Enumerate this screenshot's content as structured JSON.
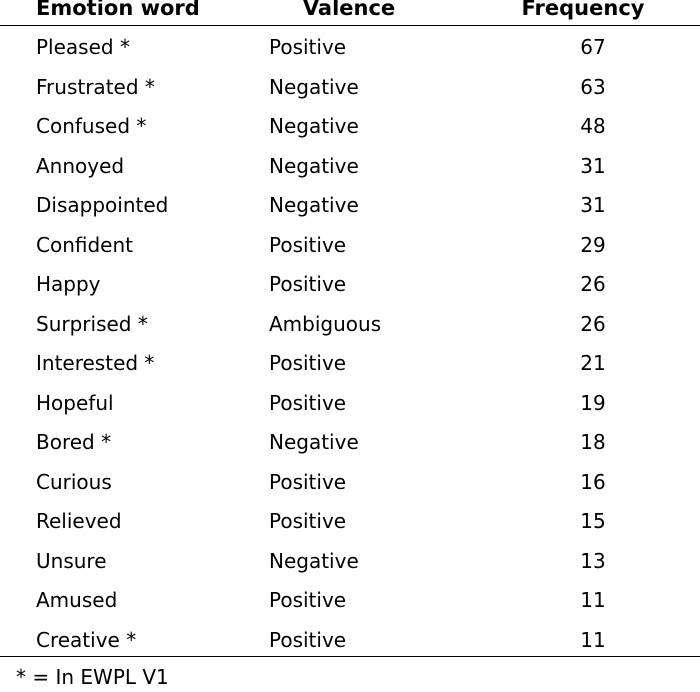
{
  "table": {
    "headers": {
      "word": "Emotion word",
      "valence": "Valence",
      "frequency": "Frequency"
    },
    "rows": [
      {
        "word": "Pleased *",
        "valence": "Positive",
        "frequency": "67"
      },
      {
        "word": "Frustrated *",
        "valence": "Negative",
        "frequency": "63"
      },
      {
        "word": "Confused *",
        "valence": "Negative",
        "frequency": "48"
      },
      {
        "word": "Annoyed",
        "valence": "Negative",
        "frequency": "31"
      },
      {
        "word": "Disappointed",
        "valence": "Negative",
        "frequency": "31"
      },
      {
        "word": "Confident",
        "valence": "Positive",
        "frequency": "29"
      },
      {
        "word": "Happy",
        "valence": "Positive",
        "frequency": "26"
      },
      {
        "word": "Surprised *",
        "valence": "Ambiguous",
        "frequency": "26"
      },
      {
        "word": "Interested *",
        "valence": "Positive",
        "frequency": "21"
      },
      {
        "word": "Hopeful",
        "valence": "Positive",
        "frequency": "19"
      },
      {
        "word": "Bored *",
        "valence": "Negative",
        "frequency": "18"
      },
      {
        "word": "Curious",
        "valence": "Positive",
        "frequency": "16"
      },
      {
        "word": "Relieved",
        "valence": "Positive",
        "frequency": "15"
      },
      {
        "word": "Unsure",
        "valence": "Negative",
        "frequency": "13"
      },
      {
        "word": "Amused",
        "valence": "Positive",
        "frequency": "11"
      },
      {
        "word": "Creative *",
        "valence": "Positive",
        "frequency": "11"
      }
    ],
    "footnote": "* = In EWPL V1"
  }
}
